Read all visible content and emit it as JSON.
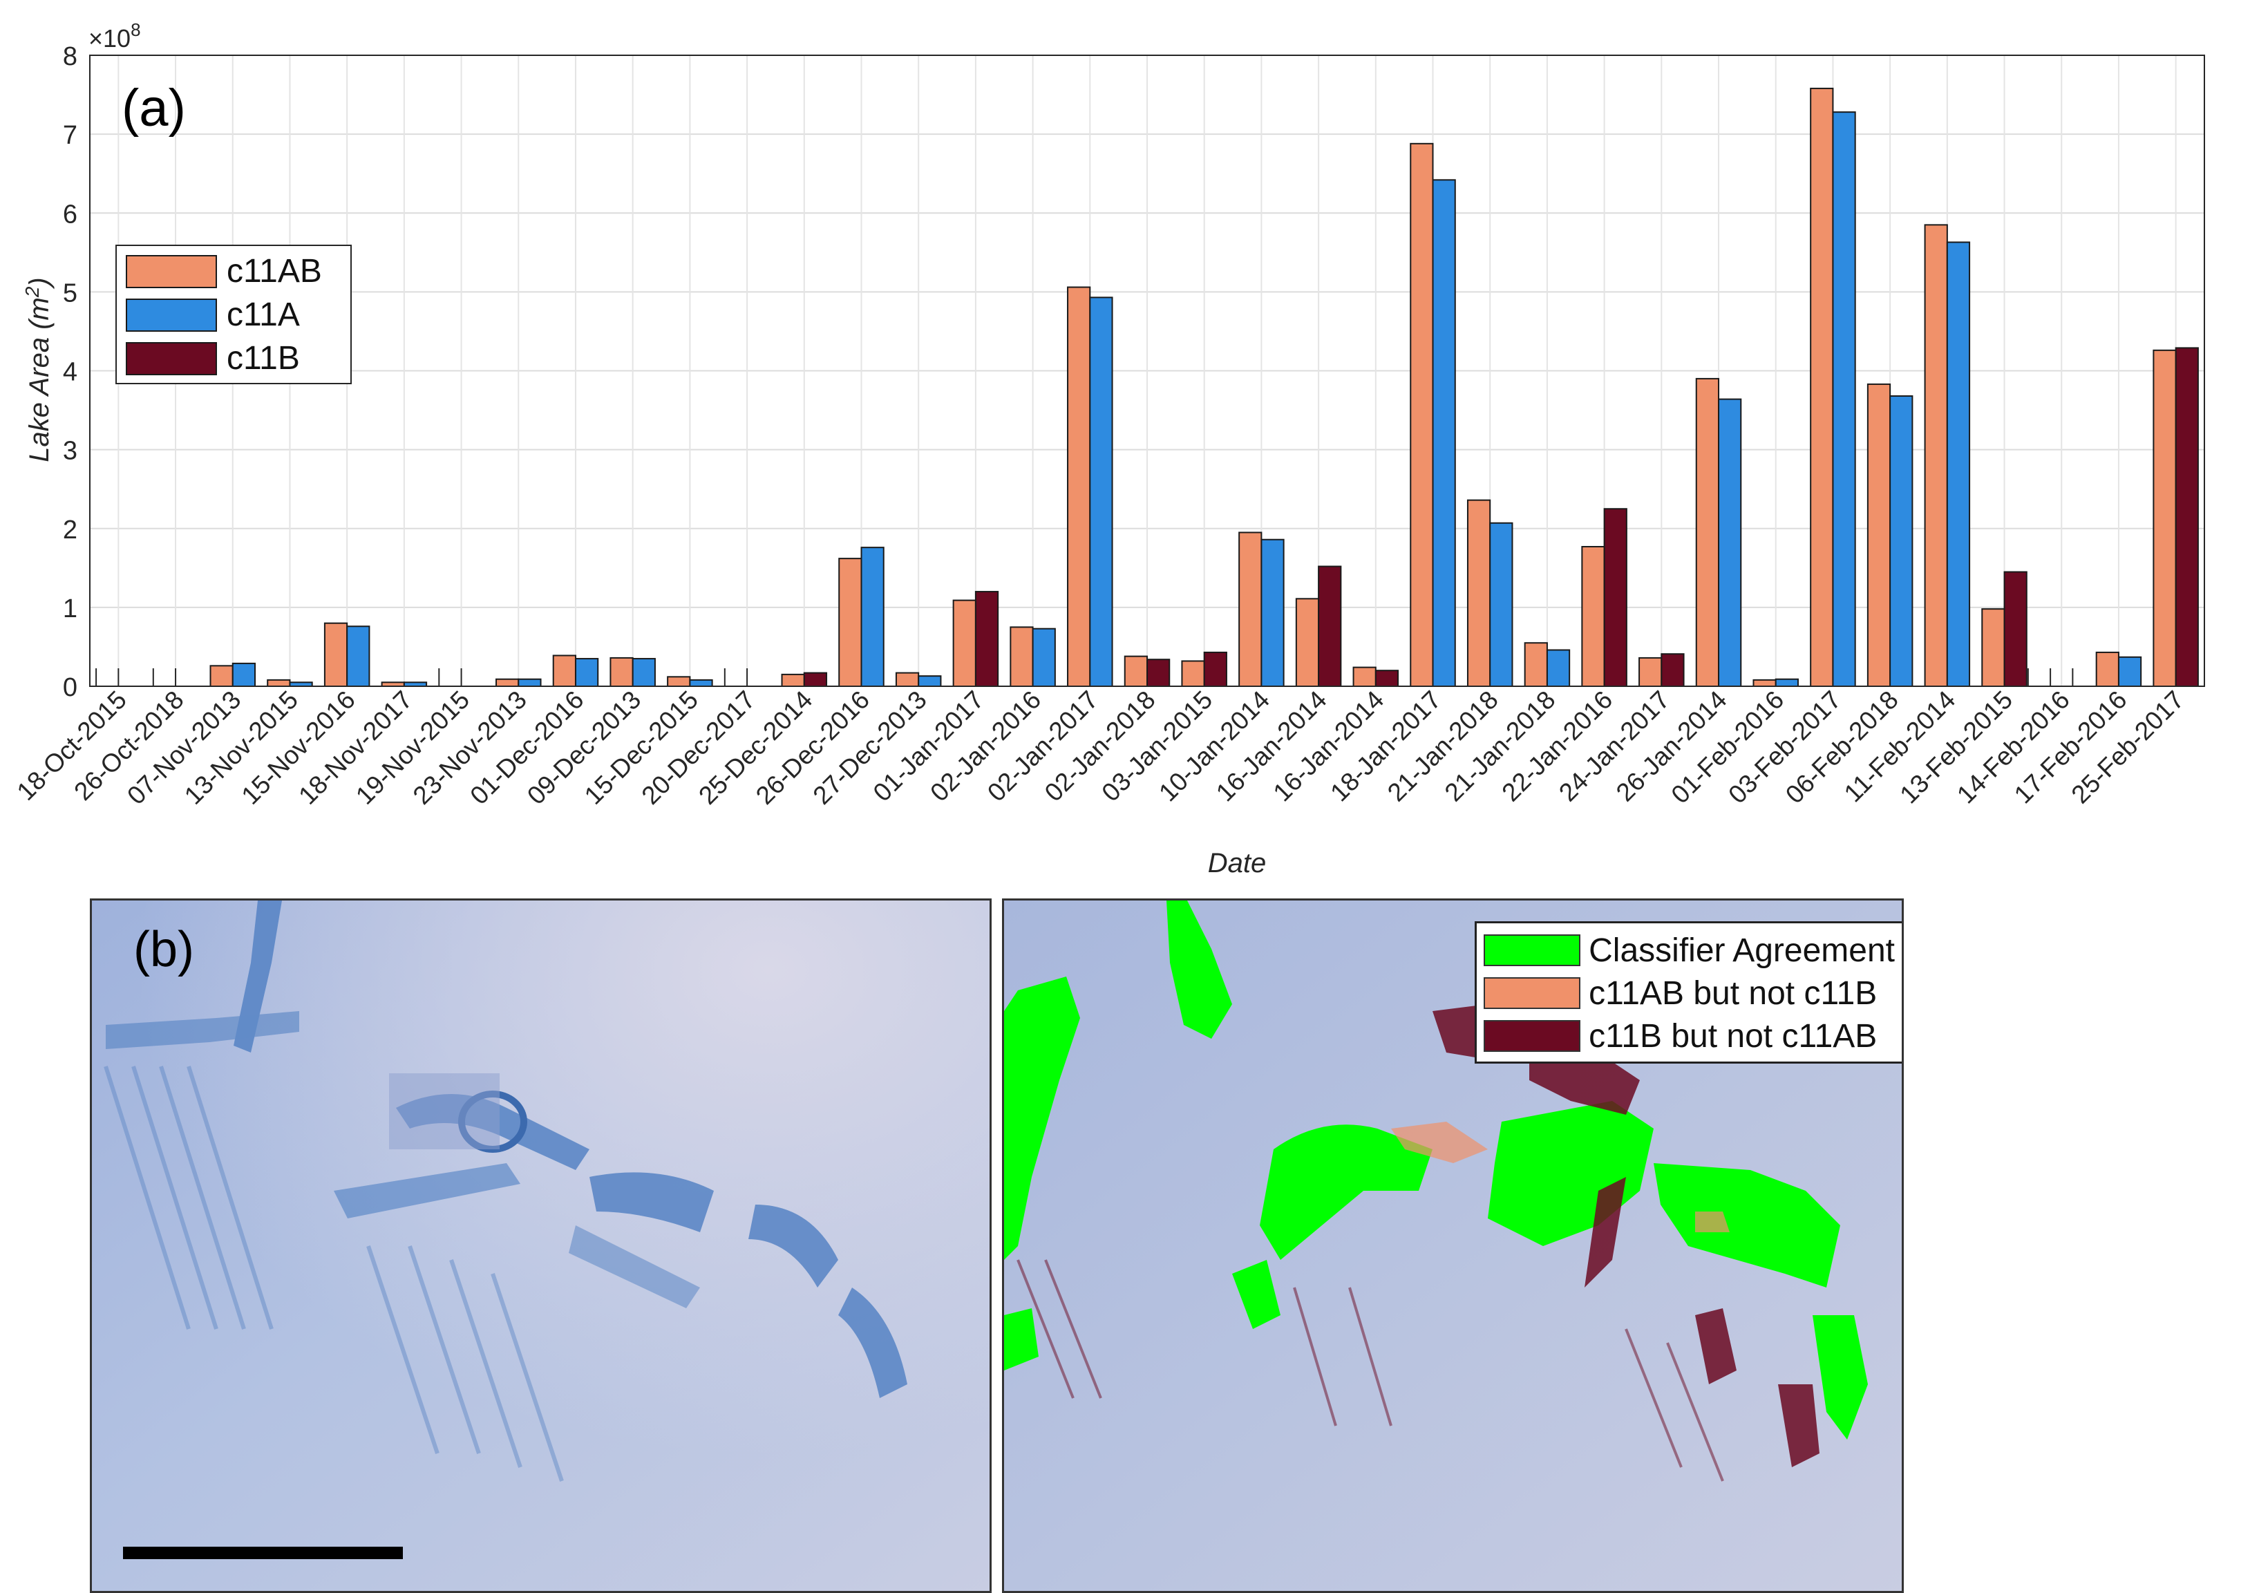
{
  "chart_data": {
    "type": "bar",
    "panel_label": "(a)",
    "xlabel": "Date",
    "ylabel_main": "Lake Area (m",
    "ylabel_sup": "2",
    "ylabel_end": ")",
    "exponent_label": "×10",
    "exponent_sup": "8",
    "ylim": [
      0,
      8
    ],
    "yticks": [
      "0",
      "1",
      "2",
      "3",
      "4",
      "5",
      "6",
      "7",
      "8"
    ],
    "grid": true,
    "legend_position": "upper-left",
    "categories": [
      "18-Oct-2015",
      "26-Oct-2018",
      "07-Nov-2013",
      "13-Nov-2015",
      "15-Nov-2016",
      "18-Nov-2017",
      "19-Nov-2015",
      "23-Nov-2013",
      "01-Dec-2016",
      "09-Dec-2013",
      "15-Dec-2015",
      "20-Dec-2017",
      "25-Dec-2014",
      "26-Dec-2016",
      "27-Dec-2013",
      "01-Jan-2017",
      "02-Jan-2016",
      "02-Jan-2017",
      "02-Jan-2018",
      "03-Jan-2015",
      "10-Jan-2014",
      "16-Jan-2014",
      "16-Jan-2014",
      "18-Jan-2017",
      "21-Jan-2018",
      "21-Jan-2018",
      "22-Jan-2016",
      "24-Jan-2017",
      "26-Jan-2014",
      "01-Feb-2016",
      "03-Feb-2017",
      "06-Feb-2018",
      "11-Feb-2014",
      "13-Feb-2015",
      "14-Feb-2016",
      "17-Feb-2016",
      "25-Feb-2017"
    ],
    "series": [
      {
        "name": "c11AB",
        "color": "#f0916a",
        "values": [
          0,
          0,
          0.26,
          0.08,
          0.8,
          0.05,
          0,
          0.09,
          0.39,
          0.36,
          0.12,
          0,
          0.15,
          1.62,
          0.17,
          1.09,
          0.75,
          5.06,
          0.38,
          0.32,
          1.95,
          1.11,
          0.24,
          6.88,
          2.36,
          0.55,
          1.77,
          0.36,
          3.9,
          0.08,
          7.58,
          3.83,
          5.85,
          0.98,
          0,
          0.43,
          4.26
        ]
      },
      {
        "name": "c11A",
        "color": "#2e8be0",
        "values": [
          0,
          0,
          0.29,
          0.05,
          0.76,
          0.05,
          0,
          0.09,
          0.35,
          0.35,
          0.08,
          0,
          null,
          1.76,
          0.13,
          null,
          0.73,
          4.93,
          null,
          null,
          1.86,
          null,
          null,
          6.42,
          2.07,
          0.46,
          null,
          null,
          3.64,
          0.09,
          7.28,
          3.68,
          5.63,
          null,
          0,
          0.37,
          null
        ]
      },
      {
        "name": "c11B",
        "color": "#6b0a22",
        "values": [
          null,
          null,
          null,
          null,
          null,
          null,
          null,
          null,
          null,
          null,
          null,
          null,
          0.17,
          null,
          null,
          1.2,
          null,
          null,
          0.34,
          0.43,
          null,
          1.52,
          0.2,
          null,
          null,
          null,
          2.25,
          0.41,
          null,
          null,
          null,
          null,
          null,
          1.45,
          0,
          null,
          4.29
        ]
      }
    ]
  },
  "panel_b": {
    "label": "(b)",
    "legend": [
      {
        "label": "Classifier Agreement",
        "color": "#00ff00"
      },
      {
        "label": "c11AB but not c11B",
        "color": "#f0916a"
      },
      {
        "label": "c11B but not c11AB",
        "color": "#6b0a22"
      }
    ],
    "colors": {
      "ice": "#b4c0df",
      "ice_light": "#cfd3e6",
      "water": "#5a87c6",
      "water_dark": "#3f6fb4"
    }
  }
}
